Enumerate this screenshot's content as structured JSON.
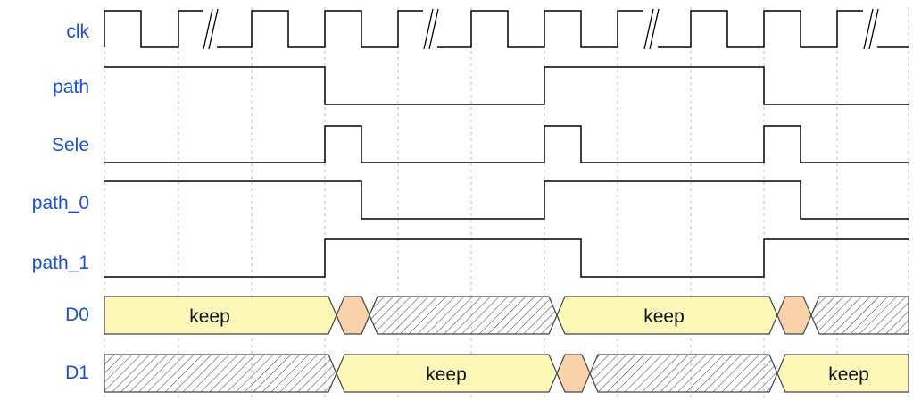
{
  "signals": {
    "clk": "clk",
    "path": "path",
    "sele": "Sele",
    "path_0": "path_0",
    "path_1": "path_1",
    "d0": "D0",
    "d1": "D1"
  },
  "bus_labels": {
    "d0_keep_1": "keep",
    "d0_keep_2": "keep",
    "d1_keep_1": "keep",
    "d1_keep_2": "keep"
  },
  "colors": {
    "signal_label": "#1a4fd6",
    "keep_fill": "#fdf7b8",
    "transition_fill": "#f9d2aa",
    "hatch": "#555555",
    "grid": "#bdbdbd",
    "line": "#000000"
  }
}
